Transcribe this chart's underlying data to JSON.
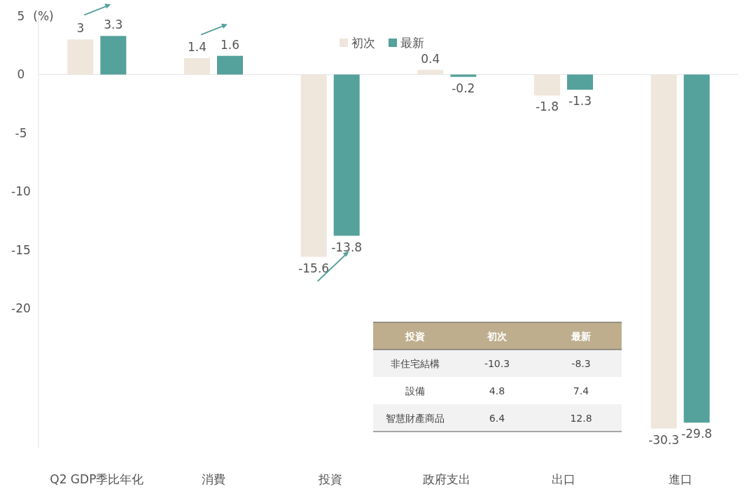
{
  "chart_data": {
    "type": "bar",
    "ylabel": "(%)",
    "categories": [
      "Q2 GDP季比年化",
      "消費",
      "投資",
      "政府支出",
      "出口",
      "進口"
    ],
    "series": [
      {
        "name": "初次",
        "color": "#efe6dc",
        "values": [
          3,
          1.4,
          -15.6,
          0.4,
          -1.8,
          -30.3
        ]
      },
      {
        "name": "最新",
        "color": "#55a19b",
        "values": [
          3.3,
          1.6,
          -13.8,
          -0.2,
          -1.3,
          -29.8
        ]
      }
    ],
    "ref_lines": [
      {
        "axis": "y",
        "value": 0,
        "color": "#e3e3e3"
      }
    ],
    "ylim": [
      -32,
      5
    ],
    "yticks": [
      -20,
      -15,
      -10,
      -5,
      0,
      5
    ],
    "grid": false,
    "legend": "top",
    "data_labels": true,
    "annotations": [
      "投資",
      "初次",
      "最新",
      "非住宅結構",
      "-10.3",
      "-8.3",
      "設備",
      "4.8",
      "7.4",
      "智慧財產商品",
      "6.4",
      "12.8"
    ]
  }
}
